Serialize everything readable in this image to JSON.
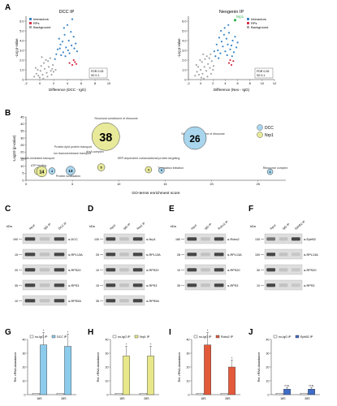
{
  "panels": {
    "A": {
      "letter": "A",
      "plot1": {
        "title": "DCC IP",
        "ylabel": "-Log p-value",
        "xlabel": "Difference (DCC - IgG)",
        "legend": [
          "Interactors",
          "RPs",
          "Background"
        ],
        "yticks": [
          "6.0",
          "5.0",
          "4.0",
          "3.0",
          "2.0",
          "1.0",
          "0"
        ],
        "xticks": [
          "-2",
          "0",
          "2",
          "4",
          "6",
          "8",
          "10"
        ],
        "note": [
          "FDR 0.05",
          "S0 0.1"
        ],
        "colors": {
          "interactors": "#3a86c8",
          "rps": "#d6304a",
          "background": "#a6a6a6"
        }
      },
      "plot2": {
        "title": "Neogenin IP",
        "ylabel": "-Log p-value",
        "xlabel": "Difference (Neo - IgG)",
        "legend": [
          "Interactors",
          "RPs",
          "Background"
        ],
        "callout": "Nrp1",
        "yticks": [
          "6.0",
          "5.0",
          "4.0",
          "3.0",
          "2.0",
          "1.0",
          "0"
        ],
        "xticks": [
          "-2",
          "0",
          "2",
          "4",
          "6",
          "8",
          "10",
          "12"
        ],
        "note": [
          "FDR 0.05",
          "S0 0.1"
        ],
        "colors": {
          "interactors": "#3a86c8",
          "rps": "#d6304a",
          "background": "#a6a6a6",
          "callout": "#2bb24c"
        }
      }
    },
    "B": {
      "letter": "B",
      "ylabel": "-Log10 (p-value)",
      "xlabel": "GO-terms enrichment score",
      "xticks": [
        "0",
        "5",
        "10",
        "15",
        "20",
        "25"
      ],
      "yticks": [
        "45",
        "40",
        "35",
        "30",
        "25",
        "20",
        "15",
        "10",
        "5",
        "0"
      ],
      "legend": [
        "DCC",
        "Nrp1"
      ],
      "colors": {
        "dcc": "#a9d6ee",
        "nrp1": "#e8ea9a",
        "stroke": "#3a3a3a"
      },
      "bubbles": [
        {
          "label": "38",
          "group": "nrp1",
          "go": 8.6,
          "logp": 31,
          "r": 17
        },
        {
          "label": "26",
          "group": "dcc",
          "go": 18.2,
          "logp": 30,
          "r": 14
        },
        {
          "label": "5",
          "group": "nrp1",
          "go": 1.3,
          "logp": 6.5,
          "r": 4.5
        },
        {
          "label": "14",
          "group": "nrp1",
          "go": 1.7,
          "logp": 6.2,
          "r": 6.5
        },
        {
          "label": "4",
          "group": "dcc",
          "go": 2.8,
          "logp": 6.6,
          "r": 4
        },
        {
          "label": "13",
          "group": "dcc",
          "go": 4.8,
          "logp": 6.8,
          "r": 5.5
        },
        {
          "label": "5",
          "group": "nrp1",
          "go": 8.1,
          "logp": 9.2,
          "r": 4.5
        },
        {
          "label": "4",
          "group": "nrp1",
          "go": 13.2,
          "logp": 7.5,
          "r": 4
        },
        {
          "label": "5",
          "group": "dcc",
          "go": 14.6,
          "logp": 7.0,
          "r": 3.5
        },
        {
          "label": "4",
          "group": "dcc",
          "go": 26.3,
          "logp": 6.0,
          "r": 3.5
        }
      ],
      "annotations": [
        "Structural constituent of ribosome",
        "Structural constituent of ribosome",
        "Protein-lipid protein transport",
        "Vesicle-mediated transport",
        "ATP binding",
        "Ion transmembrane transport",
        "Protein localization",
        "ArsA complex",
        "SRP-dependent cotranslational protein targeting",
        "Translation initiation",
        "Ribosome complex"
      ]
    },
    "C": {
      "letter": "C",
      "kda_label": "kDa",
      "lane_labels": [
        "Input",
        "IgG IP",
        "DCC IP"
      ],
      "kda": [
        "190",
        "15",
        "20",
        "35",
        "10"
      ],
      "bands": [
        "α-DCC",
        "α-RPL13A",
        "α-RPS20",
        "α-RPS3",
        "α-RPS9A"
      ]
    },
    "D": {
      "letter": "D",
      "kda_label": "kDa",
      "lane_labels": [
        "Input",
        "IgG IP",
        "Nrp1 IP"
      ],
      "kda": [
        "130",
        "25",
        "10",
        "15",
        "35"
      ],
      "bands": [
        "α-Nrp1",
        "α-RPL13A",
        "α-RPS20",
        "α-RPS3",
        "α-RPS9A"
      ]
    },
    "E": {
      "letter": "E",
      "kda_label": "kDa",
      "lane_labels": [
        "Input",
        "IgG IP",
        "Robo2 IP"
      ],
      "kda": [
        "180",
        "28",
        "10",
        "35"
      ],
      "bands": [
        "α-Robo2",
        "α-RPL13A",
        "α-RPS20",
        "α-RPS3"
      ]
    },
    "F": {
      "letter": "F",
      "kda_label": "kDa",
      "lane_labels": [
        "Input",
        "IgG IP",
        "EphB2 IP"
      ],
      "kda": [
        "130",
        "100",
        "30",
        "10",
        "35"
      ],
      "bands": [
        "α-EphB2",
        "α-RPL13A",
        "α-RPS20",
        "α-RPS3"
      ]
    },
    "G": {
      "letter": "G",
      "ylabel": "Rel. rRNA abundance",
      "legend": [
        "no-IgG IP",
        "DCC IP"
      ],
      "colors": {
        "a": "#ffffff",
        "b": "#8dcbec"
      },
      "xticks": [
        "18S",
        "28S"
      ],
      "yticks": [
        "0",
        "10",
        "20",
        "30",
        "40"
      ],
      "ymax": 40,
      "groups": [
        {
          "a": 1,
          "b": 36
        },
        {
          "a": 1,
          "b": 35
        }
      ],
      "sig": [
        "*",
        "*"
      ]
    },
    "H": {
      "letter": "H",
      "ylabel": "Rel. rRNA abundance",
      "legend": [
        "no-IgG IP",
        "Nrp1 IP"
      ],
      "colors": {
        "a": "#ffffff",
        "b": "#e8e88a"
      },
      "xticks": [
        "18S",
        "28S"
      ],
      "yticks": [
        "0",
        "10",
        "20",
        "30",
        "40"
      ],
      "ymax": 40,
      "groups": [
        {
          "a": 1,
          "b": 28
        },
        {
          "a": 1,
          "b": 28
        }
      ],
      "sig": [
        "*",
        "*"
      ]
    },
    "I": {
      "letter": "I",
      "ylabel": "Rel. rRNA abundance",
      "legend": [
        "no-IgG IP",
        "Robo2 IP"
      ],
      "colors": {
        "a": "#ffffff",
        "b": "#e25a3a"
      },
      "xticks": [
        "18S",
        "28S"
      ],
      "yticks": [
        "0",
        "10",
        "20",
        "30",
        "40"
      ],
      "ymax": 40,
      "groups": [
        {
          "a": 1,
          "b": 36
        },
        {
          "a": 1,
          "b": 20
        }
      ],
      "sig": [
        "*",
        "*"
      ]
    },
    "J": {
      "letter": "J",
      "ylabel": "Rel. rRNA abundance",
      "legend": [
        "no-IgG IP",
        "EphB2 IP"
      ],
      "colors": {
        "a": "#ffffff",
        "b": "#3f6cc6"
      },
      "xticks": [
        "18S",
        "28S"
      ],
      "yticks": [
        "0",
        "10",
        "20",
        "30",
        "40"
      ],
      "ymax": 40,
      "groups": [
        {
          "a": 1,
          "b": 4
        },
        {
          "a": 1,
          "b": 4
        }
      ],
      "sig": [
        "n.s.",
        "n.s."
      ]
    }
  },
  "chart_data": [
    {
      "type": "scatter",
      "title": "DCC IP",
      "xlabel": "Difference (DCC - IgG)",
      "ylabel": "-Log p-value",
      "xlim": [
        -2,
        10
      ],
      "ylim": [
        0,
        6.5
      ],
      "legend": "top-left",
      "series": [
        {
          "name": "Interactors",
          "points": [
            [
              2.2,
              2.1
            ],
            [
              2.6,
              3.1
            ],
            [
              3.0,
              3.6
            ],
            [
              3.4,
              2.8
            ],
            [
              3.8,
              3.3
            ],
            [
              4.2,
              4.0
            ],
            [
              4.6,
              3.5
            ],
            [
              3.1,
              2.5
            ],
            [
              2.8,
              4.2
            ],
            [
              3.6,
              4.6
            ],
            [
              4.3,
              2.7
            ],
            [
              5.0,
              3.2
            ],
            [
              2.4,
              2.6
            ],
            [
              3.3,
              3.9
            ],
            [
              4.9,
              4.4
            ],
            [
              5.4,
              2.9
            ],
            [
              2.9,
              3.2
            ],
            [
              3.7,
              2.4
            ],
            [
              4.1,
              3.0
            ],
            [
              4.5,
              4.9
            ],
            [
              5.2,
              3.7
            ],
            [
              3.5,
              5.3
            ],
            [
              4.0,
              5.6
            ],
            [
              4.7,
              6.2
            ]
          ]
        },
        {
          "name": "RPs",
          "points": [
            [
              4.3,
              1.7
            ],
            [
              4.7,
              1.5
            ],
            [
              5.1,
              1.8
            ],
            [
              5.3,
              1.6
            ],
            [
              4.9,
              2.0
            ]
          ]
        },
        {
          "name": "Background",
          "points": [
            [
              -0.8,
              0.3
            ],
            [
              -0.5,
              0.6
            ],
            [
              -0.2,
              0.4
            ],
            [
              0.1,
              0.9
            ],
            [
              0.4,
              0.5
            ],
            [
              0.7,
              1.1
            ],
            [
              1.0,
              0.7
            ],
            [
              1.3,
              1.3
            ],
            [
              1.6,
              0.9
            ],
            [
              1.9,
              1.5
            ],
            [
              -0.3,
              1.0
            ],
            [
              0.2,
              1.4
            ],
            [
              0.6,
              1.7
            ],
            [
              0.9,
              2.0
            ],
            [
              1.2,
              1.9
            ],
            [
              1.5,
              2.2
            ],
            [
              1.8,
              1.1
            ],
            [
              -0.6,
              1.2
            ],
            [
              0.0,
              0.2
            ],
            [
              0.5,
              0.1
            ],
            [
              1.1,
              0.3
            ],
            [
              1.7,
              0.5
            ],
            [
              2.0,
              0.8
            ],
            [
              2.3,
              1.0
            ],
            [
              0.3,
              2.3
            ]
          ]
        }
      ]
    },
    {
      "type": "scatter",
      "title": "Neogenin IP",
      "xlabel": "Difference (Neo - IgG)",
      "ylabel": "-Log p-value",
      "xlim": [
        -2,
        12
      ],
      "ylim": [
        0,
        6.5
      ],
      "legend": "top-right",
      "series": [
        {
          "name": "Interactors",
          "points": [
            [
              2.4,
              2.4
            ],
            [
              2.8,
              3.0
            ],
            [
              3.2,
              2.7
            ],
            [
              3.6,
              3.4
            ],
            [
              4.0,
              2.9
            ],
            [
              4.4,
              3.6
            ],
            [
              4.8,
              3.1
            ],
            [
              5.2,
              4.0
            ],
            [
              2.6,
              3.6
            ],
            [
              3.0,
              4.3
            ],
            [
              3.4,
              3.9
            ],
            [
              3.8,
              4.6
            ],
            [
              4.2,
              4.2
            ],
            [
              4.6,
              4.8
            ],
            [
              5.0,
              3.5
            ],
            [
              5.4,
              2.8
            ],
            [
              5.8,
              3.3
            ],
            [
              2.2,
              2.9
            ],
            [
              3.3,
              5.0
            ],
            [
              3.9,
              5.3
            ],
            [
              4.5,
              5.6
            ],
            [
              5.6,
              4.4
            ],
            [
              6.0,
              3.8
            ],
            [
              2.9,
              2.2
            ],
            [
              4.3,
              2.5
            ],
            [
              5.1,
              2.4
            ]
          ]
        },
        {
          "name": "RPs",
          "points": [
            [
              4.6,
              1.7
            ],
            [
              5.0,
              1.5
            ],
            [
              5.3,
              1.9
            ],
            [
              4.8,
              2.0
            ]
          ]
        },
        {
          "name": "Background",
          "points": [
            [
              -0.9,
              0.4
            ],
            [
              -0.6,
              0.8
            ],
            [
              -0.3,
              0.5
            ],
            [
              0.0,
              1.0
            ],
            [
              0.3,
              0.6
            ],
            [
              0.6,
              1.3
            ],
            [
              0.9,
              0.9
            ],
            [
              1.2,
              1.6
            ],
            [
              1.5,
              1.2
            ],
            [
              1.8,
              1.9
            ],
            [
              -0.4,
              1.3
            ],
            [
              0.2,
              1.8
            ],
            [
              0.7,
              2.1
            ],
            [
              1.0,
              2.4
            ],
            [
              1.4,
              2.2
            ],
            [
              1.7,
              0.6
            ],
            [
              2.0,
              1.0
            ],
            [
              -0.7,
              1.5
            ],
            [
              0.1,
              0.2
            ],
            [
              0.5,
              0.1
            ],
            [
              1.1,
              0.3
            ],
            [
              1.6,
              2.6
            ],
            [
              2.1,
              1.4
            ],
            [
              0.4,
              2.6
            ],
            [
              -0.1,
              2.0
            ]
          ]
        },
        {
          "name": "Nrp1",
          "points": [
            [
              5.6,
              6.1
            ]
          ]
        }
      ]
    },
    {
      "type": "scatter",
      "title": "",
      "xlabel": "GO-terms enrichment score",
      "ylabel": "-Log10 (p-value)",
      "xlim": [
        0,
        28
      ],
      "ylim": [
        0,
        45
      ],
      "legend": "top-right",
      "series": [
        {
          "name": "DCC",
          "points": [
            [
              18.2,
              30
            ],
            [
              2.8,
              6.6
            ],
            [
              4.8,
              6.8
            ],
            [
              14.6,
              7.0
            ],
            [
              26.3,
              6.0
            ]
          ]
        },
        {
          "name": "Nrp1",
          "points": [
            [
              8.6,
              31
            ],
            [
              1.3,
              6.5
            ],
            [
              1.7,
              6.2
            ],
            [
              8.1,
              9.2
            ],
            [
              13.2,
              7.5
            ]
          ]
        }
      ]
    },
    {
      "type": "bar",
      "title": "",
      "categories": [
        "18S",
        "28S"
      ],
      "xlabel": "",
      "ylabel": "Rel. rRNA abundance",
      "ylim": [
        0,
        40
      ],
      "legend": "top",
      "series": [
        {
          "name": "no-IgG IP",
          "values": [
            1,
            1
          ]
        },
        {
          "name": "DCC IP",
          "values": [
            36,
            35
          ]
        }
      ]
    },
    {
      "type": "bar",
      "title": "",
      "categories": [
        "18S",
        "28S"
      ],
      "xlabel": "",
      "ylabel": "Rel. rRNA abundance",
      "ylim": [
        0,
        40
      ],
      "legend": "top",
      "series": [
        {
          "name": "no-IgG IP",
          "values": [
            1,
            1
          ]
        },
        {
          "name": "Nrp1 IP",
          "values": [
            28,
            28
          ]
        }
      ]
    },
    {
      "type": "bar",
      "title": "",
      "categories": [
        "18S",
        "28S"
      ],
      "xlabel": "",
      "ylabel": "Rel. rRNA abundance",
      "ylim": [
        0,
        40
      ],
      "legend": "top",
      "series": [
        {
          "name": "no-IgG IP",
          "values": [
            1,
            1
          ]
        },
        {
          "name": "Robo2 IP",
          "values": [
            36,
            20
          ]
        }
      ]
    },
    {
      "type": "bar",
      "title": "",
      "categories": [
        "18S",
        "28S"
      ],
      "xlabel": "",
      "ylabel": "Rel. rRNA abundance",
      "ylim": [
        0,
        40
      ],
      "legend": "top",
      "series": [
        {
          "name": "no-IgG IP",
          "values": [
            1,
            1
          ]
        },
        {
          "name": "EphB2 IP",
          "values": [
            4,
            4
          ]
        }
      ]
    }
  ]
}
